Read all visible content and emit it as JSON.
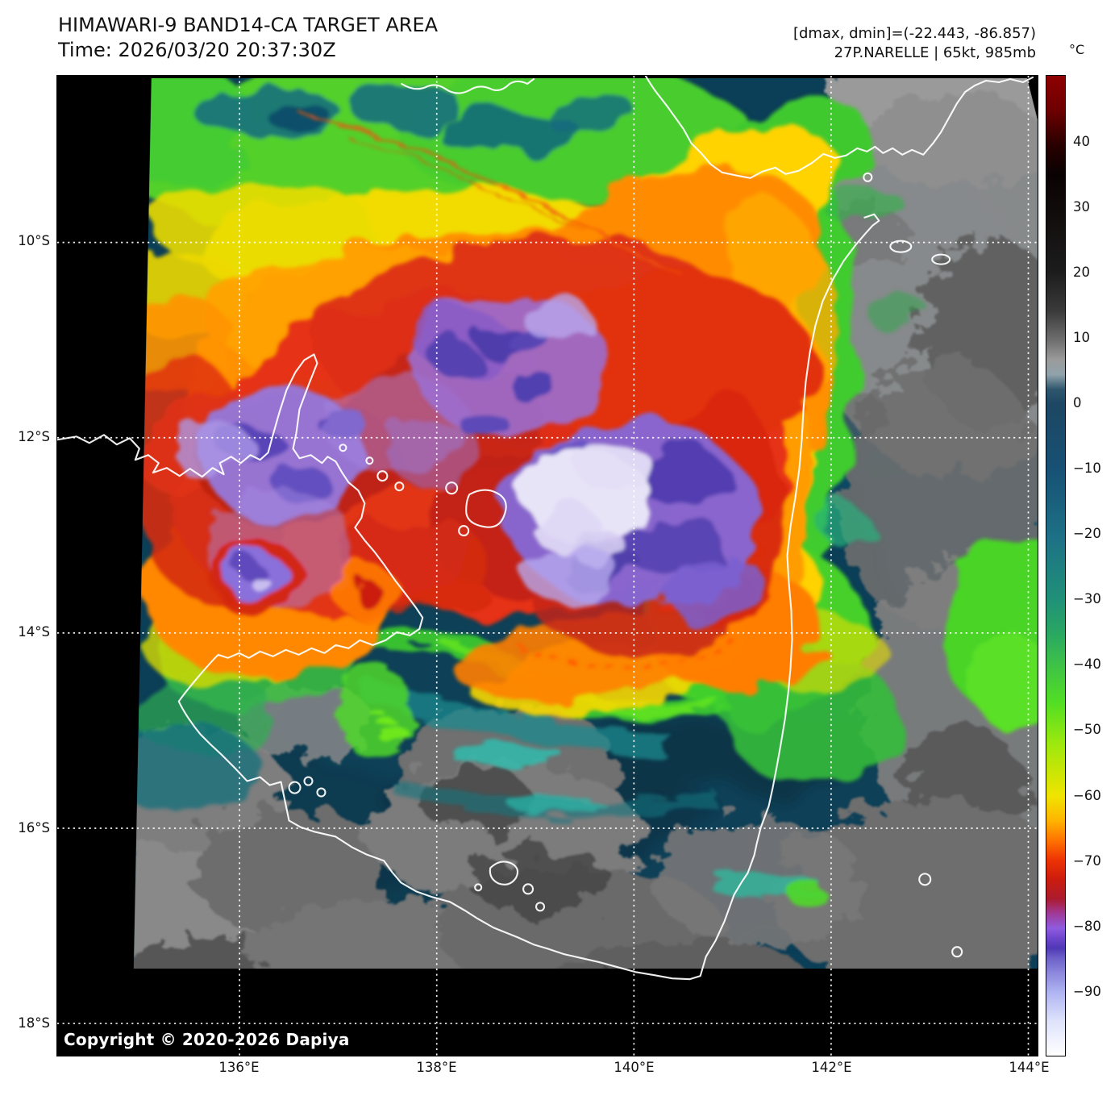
{
  "header": {
    "title": "HIMAWARI-9 BAND14-CA TARGET AREA",
    "time_line": "Time: 2026/03/20 20:37:30Z",
    "dmax_dmin_line": "[dmax, dmin]=(-22.443, -86.857)",
    "storm_line": "27P.NARELLE | 65kt, 985mb"
  },
  "colorbar": {
    "unit_label": "°C",
    "tick_labels": [
      "40",
      "30",
      "20",
      "10",
      "0",
      "−10",
      "−20",
      "−30",
      "−40",
      "−50",
      "−60",
      "−70",
      "−80",
      "−90"
    ]
  },
  "axes": {
    "lat_tick_labels": [
      "10°S",
      "12°S",
      "14°S",
      "16°S",
      "18°S"
    ],
    "lon_tick_labels": [
      "136°E",
      "138°E",
      "140°E",
      "142°E",
      "144°E"
    ]
  },
  "map_overlay": {
    "copyright": "Copyright © 2020-2026 Dapiya"
  },
  "palette": {
    "hot_dark_red_top": "#8e0000",
    "warm_gray_cloud": "#8a8a8a",
    "sea_dark_blue": "#0b3e57",
    "cool_teal": "#1f8e84",
    "cool_green": "#4ed32a",
    "cold_yellow": "#f0e400",
    "cold_orange": "#ff9000",
    "very_cold_red": "#d8260e",
    "extreme_violet": "#8668d4",
    "coldest_white_core": "#e8e4f8",
    "coastline_white": "#ffffff"
  }
}
